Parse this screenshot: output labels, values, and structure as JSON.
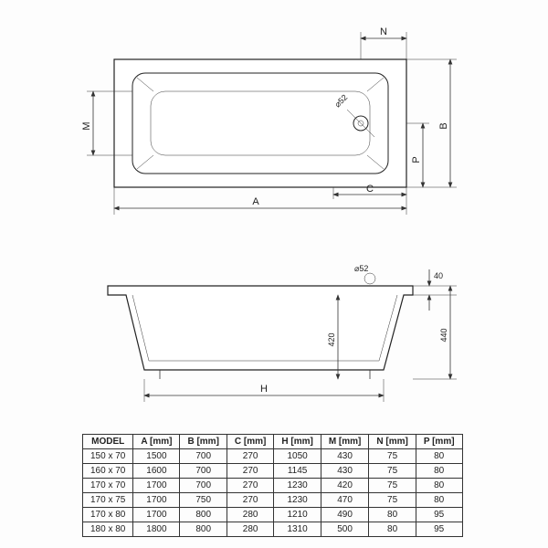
{
  "top_view": {
    "dim_A": "A",
    "dim_B": "B",
    "dim_C": "C",
    "dim_M": "M",
    "dim_N": "N",
    "dim_P": "P",
    "drain_dia": "⌀52"
  },
  "side_view": {
    "dim_H": "H",
    "depth": "420",
    "total_height": "440",
    "rim": "40",
    "drain_dia": "⌀52"
  },
  "table": {
    "columns": [
      "MODEL",
      "A [mm]",
      "B [mm]",
      "C [mm]",
      "H [mm]",
      "M [mm]",
      "N [mm]",
      "P [mm]"
    ],
    "rows": [
      [
        "150 x 70",
        "1500",
        "700",
        "270",
        "1050",
        "430",
        "75",
        "80"
      ],
      [
        "160 x 70",
        "1600",
        "700",
        "270",
        "1145",
        "430",
        "75",
        "80"
      ],
      [
        "170 x 70",
        "1700",
        "700",
        "270",
        "1230",
        "420",
        "75",
        "80"
      ],
      [
        "170 x 75",
        "1700",
        "750",
        "270",
        "1230",
        "470",
        "75",
        "80"
      ],
      [
        "170 x 80",
        "1700",
        "800",
        "280",
        "1210",
        "490",
        "80",
        "95"
      ],
      [
        "180 x 80",
        "1800",
        "800",
        "280",
        "1310",
        "500",
        "80",
        "95"
      ]
    ]
  },
  "styling": {
    "line_color": "#333333",
    "bg_color": "#fdfdfd",
    "font_size_dim": 11,
    "font_size_table": 10
  }
}
